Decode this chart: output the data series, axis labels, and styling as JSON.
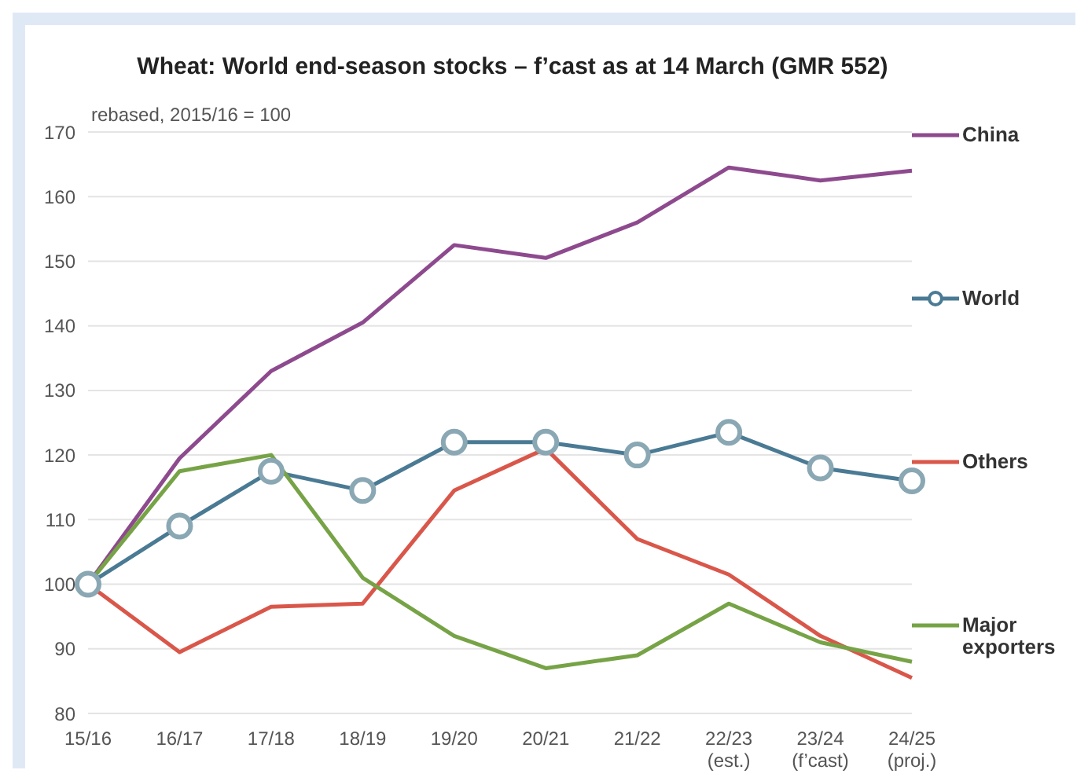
{
  "chart_data": {
    "type": "line",
    "title": "Wheat: World end-season stocks – f’cast as at 14 March (GMR 552)",
    "ylabel": "rebased, 2015/16 = 100",
    "categories": [
      "15/16",
      "16/17",
      "17/18",
      "18/19",
      "19/20",
      "20/21",
      "21/22",
      "22/23\n(est.)",
      "23/24\n(f’cast)",
      "24/25\n(proj.)"
    ],
    "ylim": [
      80,
      170
    ],
    "yticks": [
      80,
      90,
      100,
      110,
      120,
      130,
      140,
      150,
      160,
      170
    ],
    "grid": "y",
    "legend": "right",
    "series": [
      {
        "name": "China",
        "color": "#8e4a8e",
        "marker": "none",
        "values": [
          100,
          119.5,
          133,
          140.5,
          152.5,
          150.5,
          156,
          164.5,
          162.5,
          164
        ]
      },
      {
        "name": "World",
        "color": "#4a7a94",
        "marker": "circle",
        "values": [
          100,
          109,
          117.5,
          114.5,
          122,
          122,
          120,
          123.5,
          118,
          116
        ]
      },
      {
        "name": "Others",
        "color": "#d9574a",
        "marker": "none",
        "values": [
          100,
          89.5,
          96.5,
          97,
          114.5,
          121,
          107,
          101.5,
          92,
          85.5
        ]
      },
      {
        "name": "Major exporters",
        "color": "#77a347",
        "marker": "none",
        "values": [
          100,
          117.5,
          120,
          101,
          92,
          87,
          89,
          97,
          91,
          88
        ]
      }
    ]
  }
}
